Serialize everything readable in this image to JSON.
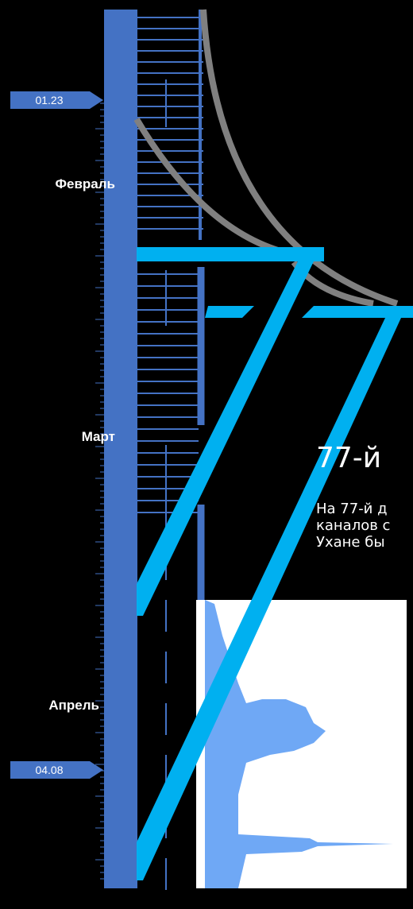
{
  "timeline": {
    "start_label": "01.23",
    "end_label": "04.08",
    "months": [
      "Февраль",
      "Март",
      "Апрель"
    ]
  },
  "article": {
    "title": "77-й",
    "lines": [
      "На 77-й д",
      "каналов с",
      "Ухане бы"
    ]
  }
}
